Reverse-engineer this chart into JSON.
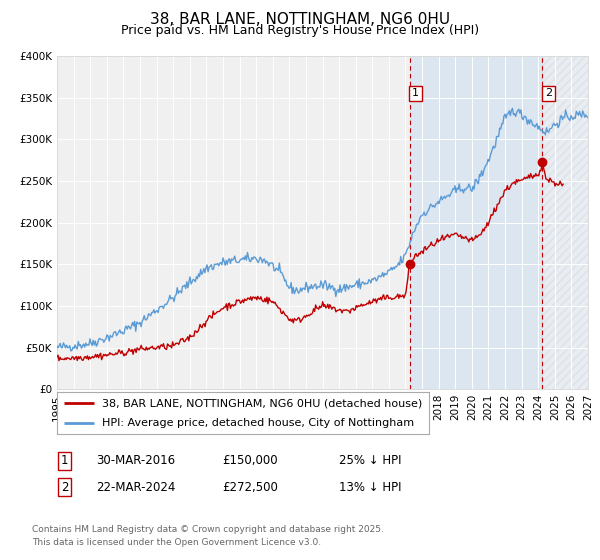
{
  "title": "38, BAR LANE, NOTTINGHAM, NG6 0HU",
  "subtitle": "Price paid vs. HM Land Registry's House Price Index (HPI)",
  "ylim": [
    0,
    400000
  ],
  "xlim_start": 1995.0,
  "xlim_end": 2027.0,
  "ytick_labels": [
    "£0",
    "£50K",
    "£100K",
    "£150K",
    "£200K",
    "£250K",
    "£300K",
    "£350K",
    "£400K"
  ],
  "ytick_values": [
    0,
    50000,
    100000,
    150000,
    200000,
    250000,
    300000,
    350000,
    400000
  ],
  "hpi_color": "#5b9bd5",
  "price_color": "#c00000",
  "sale1_x": 2016.25,
  "sale1_y": 150000,
  "sale1_label": "1",
  "sale2_x": 2024.25,
  "sale2_y": 272500,
  "sale2_label": "2",
  "vline1_x": 2016.25,
  "vline2_x": 2024.25,
  "legend_line1": "38, BAR LANE, NOTTINGHAM, NG6 0HU (detached house)",
  "legend_line2": "HPI: Average price, detached house, City of Nottingham",
  "table_rows": [
    {
      "num": "1",
      "date": "30-MAR-2016",
      "price": "£150,000",
      "hpi": "25% ↓ HPI"
    },
    {
      "num": "2",
      "date": "22-MAR-2024",
      "price": "£272,500",
      "hpi": "13% ↓ HPI"
    }
  ],
  "footnote": "Contains HM Land Registry data © Crown copyright and database right 2025.\nThis data is licensed under the Open Government Licence v3.0.",
  "background_color": "#ffffff",
  "plot_bg_color": "#f0f0f0",
  "shade_color": "#dce6f1",
  "title_fontsize": 11,
  "subtitle_fontsize": 9,
  "tick_fontsize": 7.5,
  "legend_fontsize": 8,
  "table_fontsize": 8.5,
  "footnote_fontsize": 6.5
}
